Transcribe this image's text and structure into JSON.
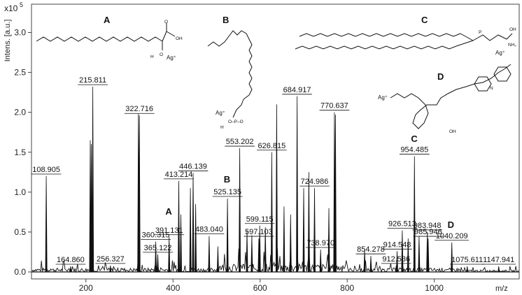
{
  "chart_data": {
    "type": "line",
    "title": "",
    "xlabel": "m/z",
    "ylabel": "Intens. [a.u.]",
    "y_multiplier": "x10",
    "y_multiplier_exp": "5",
    "xlim": [
      75,
      1195
    ],
    "ylim": [
      0,
      3.2
    ],
    "x_ticks": [
      200,
      400,
      600,
      800,
      1000
    ],
    "y_ticks": [
      0.0,
      0.5,
      1.0,
      1.5,
      2.0,
      2.5,
      3.0
    ],
    "y_tick_labels": [
      "0.0",
      "0.5",
      "1.0",
      "1.5",
      "2.0",
      "2.5",
      "3.0"
    ],
    "grid": false,
    "peaks": [
      {
        "mz": 108.905,
        "intensity": 1.2,
        "label": "108.905"
      },
      {
        "mz": 164.86,
        "intensity": 0.07,
        "label": "164.860"
      },
      {
        "mz": 210.0,
        "intensity": 1.65,
        "label": ""
      },
      {
        "mz": 212.5,
        "intensity": 1.6,
        "label": ""
      },
      {
        "mz": 215.811,
        "intensity": 2.32,
        "label": "215.811"
      },
      {
        "mz": 256.327,
        "intensity": 0.08,
        "label": "256.327"
      },
      {
        "mz": 320.5,
        "intensity": 1.98,
        "label": ""
      },
      {
        "mz": 322.716,
        "intensity": 1.96,
        "label": "322.716"
      },
      {
        "mz": 360.315,
        "intensity": 0.38,
        "label": "360.315"
      },
      {
        "mz": 365.122,
        "intensity": 0.22,
        "label": "365.122"
      },
      {
        "mz": 391.131,
        "intensity": 0.44,
        "label": "391.131"
      },
      {
        "mz": 413.214,
        "intensity": 1.14,
        "label": "413.214"
      },
      {
        "mz": 418.0,
        "intensity": 0.72,
        "label": ""
      },
      {
        "mz": 440.0,
        "intensity": 1.05,
        "label": ""
      },
      {
        "mz": 446.139,
        "intensity": 1.24,
        "label": "446.139"
      },
      {
        "mz": 452.0,
        "intensity": 0.85,
        "label": ""
      },
      {
        "mz": 483.04,
        "intensity": 0.45,
        "label": "483.040"
      },
      {
        "mz": 503.0,
        "intensity": 0.32,
        "label": ""
      },
      {
        "mz": 525.135,
        "intensity": 0.92,
        "label": "525.135"
      },
      {
        "mz": 553.202,
        "intensity": 1.55,
        "label": "553.202"
      },
      {
        "mz": 570.0,
        "intensity": 0.52,
        "label": ""
      },
      {
        "mz": 581.0,
        "intensity": 0.46,
        "label": ""
      },
      {
        "mz": 597.103,
        "intensity": 0.42,
        "label": "597.103"
      },
      {
        "mz": 599.115,
        "intensity": 0.58,
        "label": "599.115"
      },
      {
        "mz": 612.0,
        "intensity": 0.56,
        "label": ""
      },
      {
        "mz": 626.815,
        "intensity": 1.5,
        "label": "626.815"
      },
      {
        "mz": 638.0,
        "intensity": 2.1,
        "label": ""
      },
      {
        "mz": 655.0,
        "intensity": 0.82,
        "label": ""
      },
      {
        "mz": 670.0,
        "intensity": 0.72,
        "label": ""
      },
      {
        "mz": 684.917,
        "intensity": 2.2,
        "label": "684.917"
      },
      {
        "mz": 700.0,
        "intensity": 1.05,
        "label": ""
      },
      {
        "mz": 712.0,
        "intensity": 1.25,
        "label": ""
      },
      {
        "mz": 724.986,
        "intensity": 1.05,
        "label": "724.986"
      },
      {
        "mz": 738.97,
        "intensity": 0.28,
        "label": "738.970"
      },
      {
        "mz": 758.0,
        "intensity": 0.8,
        "label": ""
      },
      {
        "mz": 770.637,
        "intensity": 2.0,
        "label": "770.637"
      },
      {
        "mz": 773.0,
        "intensity": 1.97,
        "label": ""
      },
      {
        "mz": 840.0,
        "intensity": 0.28,
        "label": ""
      },
      {
        "mz": 854.278,
        "intensity": 0.2,
        "label": "854.278"
      },
      {
        "mz": 912.536,
        "intensity": 0.08,
        "label": "912.536"
      },
      {
        "mz": 914.548,
        "intensity": 0.26,
        "label": "914.548"
      },
      {
        "mz": 926.513,
        "intensity": 0.52,
        "label": "926.513"
      },
      {
        "mz": 940.0,
        "intensity": 0.42,
        "label": ""
      },
      {
        "mz": 954.485,
        "intensity": 1.45,
        "label": "954.485"
      },
      {
        "mz": 965.0,
        "intensity": 0.45,
        "label": ""
      },
      {
        "mz": 983.948,
        "intensity": 0.5,
        "label": "983.948"
      },
      {
        "mz": 985.946,
        "intensity": 0.42,
        "label": "985.946"
      },
      {
        "mz": 1040.209,
        "intensity": 0.37,
        "label": "1040.209"
      },
      {
        "mz": 1075.611,
        "intensity": 0.07,
        "label": "1075.611"
      },
      {
        "mz": 1147.941,
        "intensity": 0.07,
        "label": "1147.941"
      }
    ],
    "annotations": [
      {
        "text": "A",
        "mz": 390.0,
        "intensity": 0.72
      },
      {
        "text": "B",
        "mz": 524.0,
        "intensity": 1.12
      },
      {
        "text": "C",
        "mz": 954.0,
        "intensity": 1.63
      },
      {
        "text": "D",
        "mz": 1038.0,
        "intensity": 0.55
      }
    ]
  },
  "structures": {
    "A": {
      "letter": "A",
      "ion": "Ag⁺",
      "oh_top": "OH",
      "o_top": "O",
      "h_low": "H"
    },
    "B": {
      "letter": "B",
      "ion": "Ag⁺",
      "phosphate": "O–P–O",
      "h": "H"
    },
    "C": {
      "letter": "C",
      "ion": "Ag⁺",
      "nh": "NH₂",
      "oh": "OH"
    },
    "D": {
      "letter": "D",
      "ion": "Ag⁺",
      "nh": "N",
      "oh": "OH"
    }
  },
  "style": {
    "line_color": "#111111",
    "axis_color": "#444444"
  }
}
